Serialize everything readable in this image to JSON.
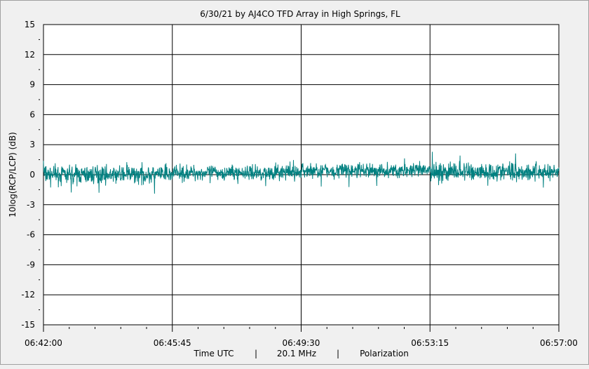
{
  "chart_data": {
    "type": "line",
    "title": "6/30/21  by  AJ4CO TFD Array  in  High Springs, FL",
    "ylabel": "10log(RCP/LCP) (dB)",
    "xlabel_parts": [
      "Time UTC",
      "|",
      "20.1 MHz",
      "|",
      "Polarization"
    ],
    "ylim": [
      -15,
      15
    ],
    "yticks": [
      15,
      12,
      9,
      6,
      3,
      0,
      -3,
      -6,
      -9,
      -12,
      -15
    ],
    "ytick_labels": [
      "15",
      "12",
      "9",
      "6",
      "3",
      "0",
      "-3",
      "-6",
      "-9",
      "-12",
      "-15"
    ],
    "xlim_seconds_from_start": [
      0,
      900
    ],
    "xticks_seconds": [
      0,
      225,
      450,
      675,
      900
    ],
    "xtick_labels": [
      "06:42:00",
      "06:45:45",
      "06:49:30",
      "06:53:15",
      "06:57:00"
    ],
    "grid": true,
    "series": [
      {
        "color": "#008080",
        "segments": [
          {
            "x_start": "06:42:00",
            "x_end": "06:45:45",
            "mean": 0.0,
            "min": -2.0,
            "max": 1.6
          },
          {
            "x_start": "06:45:45",
            "x_end": "06:49:30",
            "mean": 0.2,
            "min": -1.2,
            "max": 1.8
          },
          {
            "x_start": "06:49:30",
            "x_end": "06:53:15",
            "mean": 0.4,
            "min": -1.3,
            "max": 1.7
          },
          {
            "x_start": "06:53:15",
            "x_end": "06:57:00",
            "mean": 0.3,
            "min": -1.3,
            "max": 2.4
          }
        ]
      }
    ]
  }
}
